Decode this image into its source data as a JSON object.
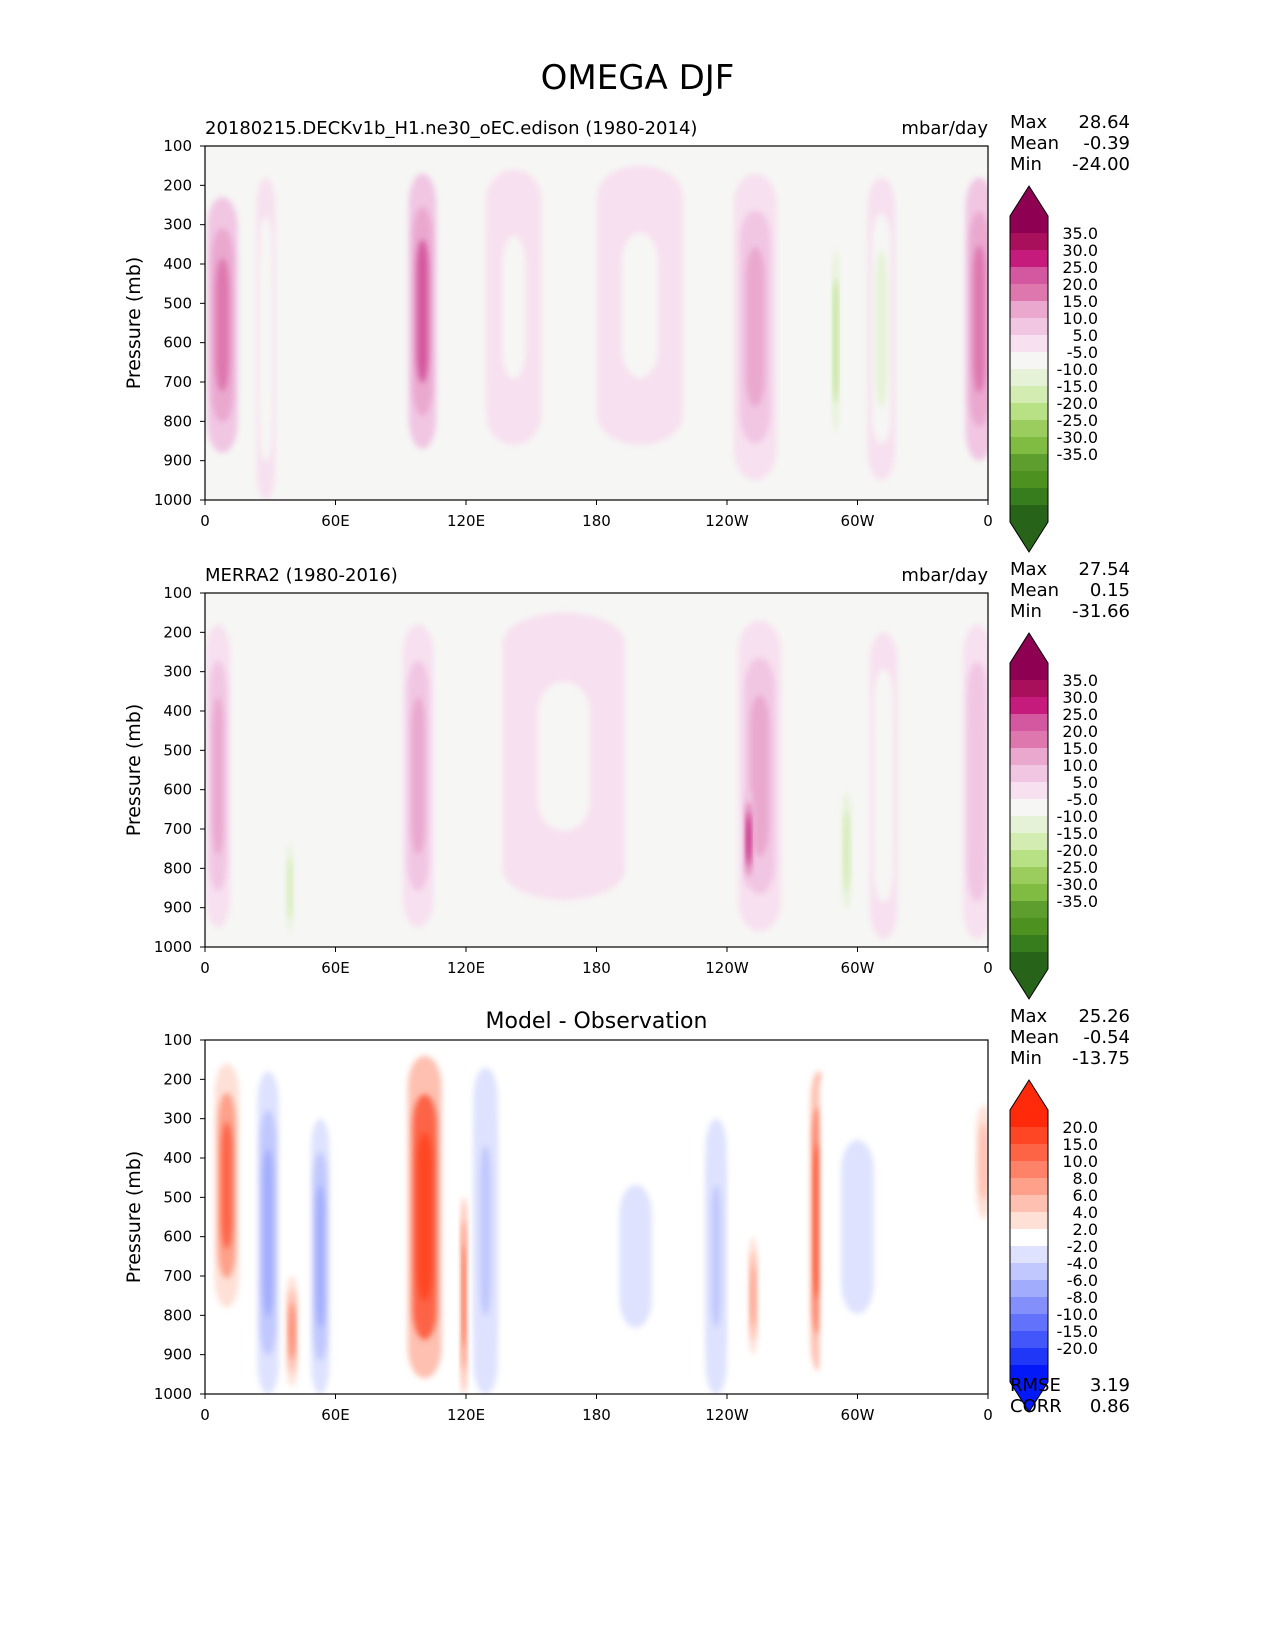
{
  "title": "OMEGA DJF",
  "chart_data": [
    {
      "type": "heatmap",
      "subtitle_left": "20180215.DECKv1b_H1.ne30_oEC.edison (1980-2014)",
      "subtitle_right": "mbar/day",
      "center_title": "",
      "ylabel": "Pressure (mb)",
      "xlabel": "",
      "yticks": [
        "100",
        "200",
        "300",
        "400",
        "500",
        "600",
        "700",
        "800",
        "900",
        "1000"
      ],
      "xticks": [
        "0",
        "60E",
        "120E",
        "180",
        "120W",
        "60W",
        "0"
      ],
      "stats": [
        {
          "label": "Max",
          "value": "28.64"
        },
        {
          "label": "Mean",
          "value": "-0.39"
        },
        {
          "label": "Min",
          "value": "-24.00"
        }
      ],
      "colorbar": {
        "labels": [
          "35.0",
          "30.0",
          "25.0",
          "20.0",
          "15.0",
          "10.0",
          "5.0",
          "-5.0",
          "-10.0",
          "-15.0",
          "-20.0",
          "-25.0",
          "-30.0",
          "-35.0"
        ],
        "colors": [
          "#8e0152",
          "#a8105c",
          "#c51b7d",
          "#d4589f",
          "#de77ae",
          "#eaa8cf",
          "#f1c6e3",
          "#f7e0ef",
          "#f6f6f4",
          "#e6f2d8",
          "#d2ecb2",
          "#b8e186",
          "#9bcd5e",
          "#7fbc41",
          "#5d9e2f",
          "#4d9221",
          "#377d1d",
          "#276419"
        ],
        "top_color": "#8e0152",
        "bottom_color": "#276419"
      },
      "features": [
        {
          "lon": 8,
          "top": 230,
          "bottom": 880,
          "width": 10,
          "value": 18
        },
        {
          "lon": 28,
          "top": 180,
          "bottom": 1000,
          "width": 6,
          "value": -9
        },
        {
          "lon": 100,
          "top": 170,
          "bottom": 870,
          "width": 9,
          "value": 24
        },
        {
          "lon": 142,
          "top": 160,
          "bottom": 860,
          "width": 18,
          "value": -7
        },
        {
          "lon": 200,
          "top": 150,
          "bottom": 860,
          "width": 28,
          "value": -7
        },
        {
          "lon": 253,
          "top": 170,
          "bottom": 950,
          "width": 14,
          "value": 14
        },
        {
          "lon": 290,
          "top": 290,
          "bottom": 900,
          "width": 3,
          "value": -22
        },
        {
          "lon": 311,
          "top": 180,
          "bottom": 950,
          "width": 9,
          "value": -12
        },
        {
          "lon": 356,
          "top": 180,
          "bottom": 900,
          "width": 9,
          "value": 17
        }
      ],
      "rmse": "",
      "corr": ""
    },
    {
      "type": "heatmap",
      "subtitle_left": "MERRA2 (1980-2016)",
      "subtitle_right": "mbar/day",
      "center_title": "",
      "ylabel": "Pressure (mb)",
      "xlabel": "",
      "yticks": [
        "100",
        "200",
        "300",
        "400",
        "500",
        "600",
        "700",
        "800",
        "900",
        "1000"
      ],
      "xticks": [
        "0",
        "60E",
        "120E",
        "180",
        "120W",
        "60W",
        "0"
      ],
      "stats": [
        {
          "label": "Max",
          "value": "27.54"
        },
        {
          "label": "Mean",
          "value": "0.15"
        },
        {
          "label": "Min",
          "value": "-31.66"
        }
      ],
      "colorbar": {
        "labels": [
          "35.0",
          "30.0",
          "25.0",
          "20.0",
          "15.0",
          "10.0",
          "5.0",
          "-5.0",
          "-10.0",
          "-15.0",
          "-20.0",
          "-25.0",
          "-30.0",
          "-35.0"
        ],
        "colors": [
          "#8e0152",
          "#a8105c",
          "#c51b7d",
          "#d4589f",
          "#de77ae",
          "#eaa8cf",
          "#f1c6e3",
          "#f7e0ef",
          "#f6f6f4",
          "#e6f2d8",
          "#d2ecb2",
          "#b8e186",
          "#9bcd5e",
          "#7fbc41",
          "#5d9e2f",
          "#4d9221",
          "#377d1d",
          "#276419"
        ],
        "top_color": "#8e0152",
        "bottom_color": "#276419"
      },
      "features": [
        {
          "lon": 6,
          "top": 180,
          "bottom": 950,
          "width": 8,
          "value": 11
        },
        {
          "lon": 39,
          "top": 700,
          "bottom": 1000,
          "width": 3,
          "value": -17
        },
        {
          "lon": 98,
          "top": 180,
          "bottom": 950,
          "width": 10,
          "value": 10
        },
        {
          "lon": 165,
          "top": 150,
          "bottom": 880,
          "width": 40,
          "value": -7
        },
        {
          "lon": 255,
          "top": 170,
          "bottom": 960,
          "width": 14,
          "value": 14
        },
        {
          "lon": 250,
          "top": 600,
          "bottom": 850,
          "width": 3,
          "value": 27
        },
        {
          "lon": 295,
          "top": 560,
          "bottom": 950,
          "width": 4,
          "value": -17
        },
        {
          "lon": 312,
          "top": 200,
          "bottom": 980,
          "width": 9,
          "value": -9
        },
        {
          "lon": 355,
          "top": 180,
          "bottom": 980,
          "width": 9,
          "value": 9
        }
      ],
      "rmse": "",
      "corr": ""
    },
    {
      "type": "heatmap",
      "subtitle_left": "",
      "subtitle_right": "",
      "center_title": "Model - Observation",
      "ylabel": "Pressure (mb)",
      "xlabel": "",
      "yticks": [
        "100",
        "200",
        "300",
        "400",
        "500",
        "600",
        "700",
        "800",
        "900",
        "1000"
      ],
      "xticks": [
        "0",
        "60E",
        "120E",
        "180",
        "120W",
        "60W",
        "0"
      ],
      "stats": [
        {
          "label": "Max",
          "value": "25.26"
        },
        {
          "label": "Mean",
          "value": "-0.54"
        },
        {
          "label": "Min",
          "value": "-13.75"
        }
      ],
      "colorbar": {
        "labels": [
          "20.0",
          "15.0",
          "10.0",
          "8.0",
          "6.0",
          "4.0",
          "2.0",
          "-2.0",
          "-4.0",
          "-6.0",
          "-8.0",
          "-10.0",
          "-15.0",
          "-20.0"
        ],
        "colors": [
          "#ff2a0a",
          "#fe4624",
          "#fd6446",
          "#fd8268",
          "#fea08a",
          "#fec0b0",
          "#fee0d6",
          "#ffffff",
          "#dee2fe",
          "#c0c8fd",
          "#a1acfc",
          "#8390fb",
          "#6272fa",
          "#4256f9",
          "#2137f8",
          "#0419f7"
        ],
        "top_color": "#ff2a0a",
        "bottom_color": "#0419f7"
      },
      "features": [
        {
          "lon": 10,
          "top": 160,
          "bottom": 780,
          "width": 8,
          "value": 10
        },
        {
          "lon": 29,
          "top": 180,
          "bottom": 1000,
          "width": 7,
          "value": -8
        },
        {
          "lon": 40,
          "top": 700,
          "bottom": 980,
          "width": 4,
          "value": 9
        },
        {
          "lon": 53,
          "top": 300,
          "bottom": 1000,
          "width": 6,
          "value": -7
        },
        {
          "lon": 101,
          "top": 140,
          "bottom": 960,
          "width": 11,
          "value": 17
        },
        {
          "lon": 119,
          "top": 500,
          "bottom": 1000,
          "width": 2,
          "value": 12
        },
        {
          "lon": 129,
          "top": 170,
          "bottom": 1000,
          "width": 8,
          "value": -6
        },
        {
          "lon": 198,
          "top": 300,
          "bottom": 1000,
          "width": 25,
          "value": -3
        },
        {
          "lon": 235,
          "top": 300,
          "bottom": 1000,
          "width": 7,
          "value": -6
        },
        {
          "lon": 252,
          "top": 600,
          "bottom": 900,
          "width": 3,
          "value": 7
        },
        {
          "lon": 282,
          "top": 180,
          "bottom": 940,
          "width": 5,
          "value": 16
        },
        {
          "lon": 300,
          "top": 150,
          "bottom": 1000,
          "width": 25,
          "value": -3
        },
        {
          "lon": 358,
          "top": 220,
          "bottom": 600,
          "width": 7,
          "value": 4
        }
      ],
      "rmse": "3.19",
      "corr": "0.86"
    }
  ],
  "rmse_label": "RMSE",
  "corr_label": "CORR"
}
